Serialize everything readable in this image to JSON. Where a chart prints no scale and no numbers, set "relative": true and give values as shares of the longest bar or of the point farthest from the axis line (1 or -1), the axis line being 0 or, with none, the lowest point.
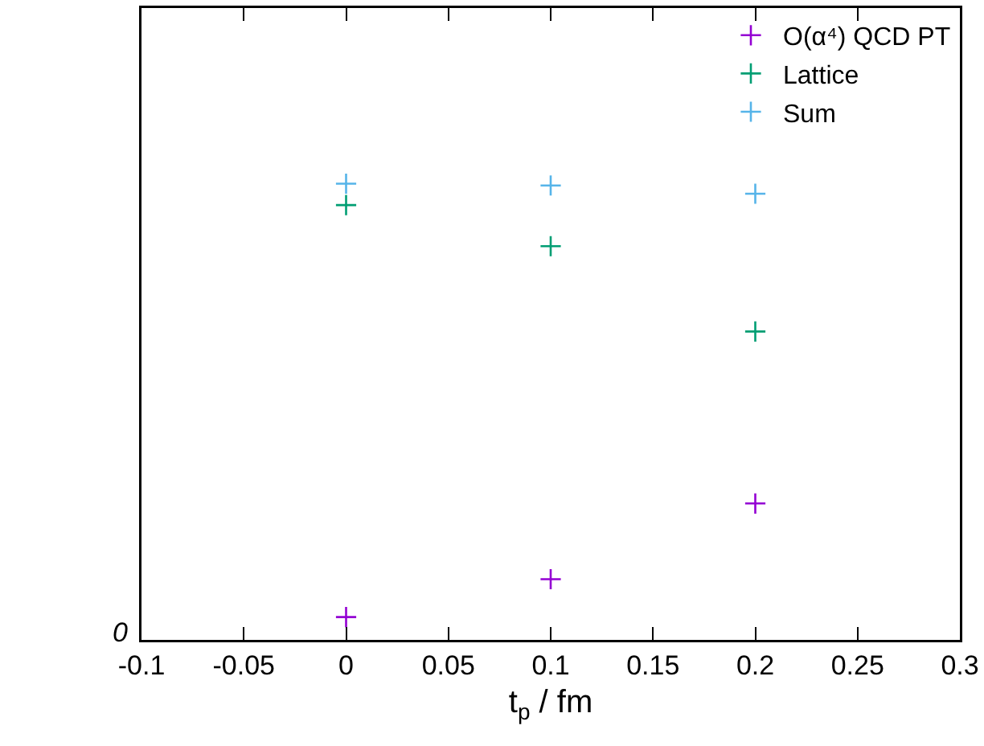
{
  "chart_data": {
    "type": "scatter",
    "relative": true,
    "xlabel": "t$_{p}$ / fm",
    "x": [
      0,
      0.1,
      0.2
    ],
    "xlim": [
      -0.1,
      0.3
    ],
    "xticks": [
      -0.1,
      -0.05,
      0,
      0.05,
      0.1,
      0.15,
      0.2,
      0.25,
      0.3
    ],
    "annotations": [
      "0"
    ],
    "grid": false,
    "legend": "top right",
    "series": [
      {
        "name": "O(α⁴) QCD PT",
        "color": "#9400d3",
        "marker": "cross",
        "values": [
          0.05,
          0.133,
          0.299
        ]
      },
      {
        "name": "Lattice",
        "color": "#009e73",
        "marker": "cross",
        "values": [
          0.953,
          0.863,
          0.676
        ]
      },
      {
        "name": "Sum",
        "color": "#56b4e9",
        "marker": "cross",
        "values": [
          1,
          0.996,
          0.978
        ]
      }
    ]
  }
}
